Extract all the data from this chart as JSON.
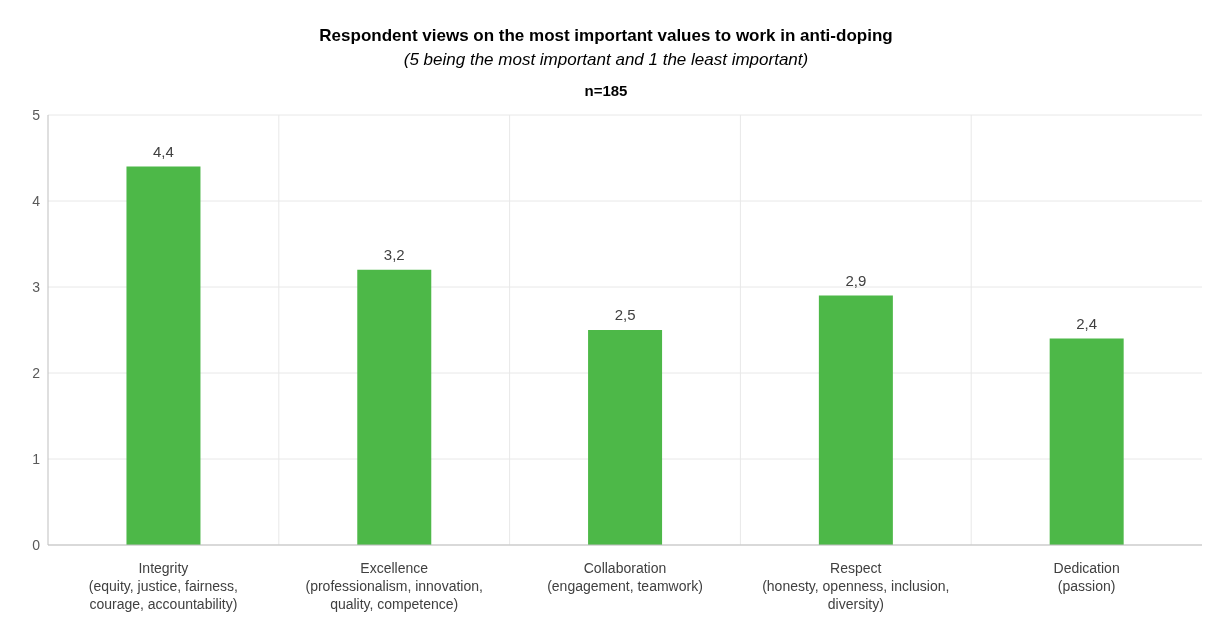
{
  "chart_data": {
    "type": "bar",
    "title": "Respondent views on the most important values to work in anti-doping",
    "subtitle": "(5 being the most important and 1 the least important)",
    "annotations": [
      "n=185"
    ],
    "categories": [
      "Integrity\n(equity, justice, fairness,\ncourage, accountability)",
      "Excellence\n(professionalism, innovation,\nquality, competence)",
      "Collaboration\n(engagement, teamwork)",
      "Respect\n(honesty, openness, inclusion,\ndiversity)",
      "Dedication\n(passion)"
    ],
    "values": [
      4.4,
      3.2,
      2.5,
      2.9,
      2.4
    ],
    "value_labels": [
      "4,4",
      "3,2",
      "2,5",
      "2,9",
      "2,4"
    ],
    "color": "#4db848",
    "ylim": [
      0,
      5
    ],
    "yticks": [
      0,
      1,
      2,
      3,
      4,
      5
    ],
    "grid": true
  }
}
